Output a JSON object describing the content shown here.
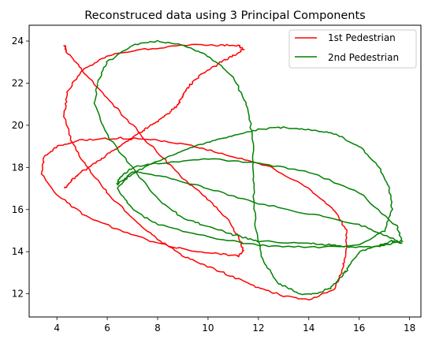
{
  "chart_data": {
    "type": "line",
    "title": "Reconstruced data using 3 Principal Components",
    "xlabel": "",
    "ylabel": "",
    "xlim": [
      2.9,
      18.45
    ],
    "ylim": [
      10.9,
      24.75
    ],
    "xticks": [
      4,
      6,
      8,
      10,
      12,
      14,
      16,
      18
    ],
    "yticks": [
      12,
      14,
      16,
      18,
      20,
      22,
      24
    ],
    "xtick_labels": [
      "4",
      "6",
      "8",
      "10",
      "12",
      "14",
      "16",
      "18"
    ],
    "ytick_labels": [
      "12",
      "14",
      "16",
      "18",
      "20",
      "22",
      "24"
    ],
    "grid": false,
    "legend_position": "top-right",
    "series": [
      {
        "name": "1st Pedestrian",
        "color": "#ff0000",
        "x": [
          4.3,
          4.4,
          5.0,
          6.0,
          7.0,
          8.0,
          9.0,
          10.0,
          10.8,
          11.3,
          11.4,
          11.2,
          10.5,
          9.5,
          8.0,
          6.5,
          5.0,
          4.0,
          3.4,
          3.5,
          4.0,
          5.0,
          6.5,
          8.0,
          9.5,
          11.0,
          12.5,
          14.0,
          15.0,
          15.5,
          15.5,
          15.3,
          15.0,
          14.0,
          13.0,
          12.0,
          11.0,
          10.0,
          9.0,
          8.0,
          7.0,
          6.0,
          5.2,
          4.6,
          4.3,
          4.4,
          5.0,
          6.0,
          7.5,
          9.0,
          10.3,
          11.2,
          11.4,
          11.0,
          10.5,
          10.0,
          9.5,
          9.2,
          9.0,
          8.8,
          8.5,
          8.0,
          7.5,
          7.0,
          6.5,
          6.0,
          5.5,
          5.0,
          4.6,
          4.3
        ],
        "y": [
          23.8,
          23.5,
          22.6,
          21.3,
          20.0,
          18.7,
          17.5,
          16.5,
          15.5,
          14.5,
          14.0,
          13.8,
          13.9,
          14.0,
          14.4,
          15.0,
          15.8,
          16.7,
          17.7,
          18.5,
          19.0,
          19.3,
          19.4,
          19.3,
          19.0,
          18.5,
          18.0,
          17.0,
          16.0,
          15.0,
          14.0,
          13.0,
          12.2,
          11.7,
          11.9,
          12.3,
          12.8,
          13.3,
          13.8,
          14.6,
          15.6,
          16.8,
          18.0,
          19.2,
          20.4,
          21.6,
          22.6,
          23.3,
          23.6,
          23.8,
          23.8,
          23.8,
          23.6,
          23.3,
          23.0,
          22.6,
          22.2,
          21.8,
          21.4,
          21.0,
          20.6,
          20.2,
          19.8,
          19.4,
          19.0,
          18.6,
          18.2,
          17.8,
          17.4,
          17.0
        ]
      },
      {
        "name": "2nd Pedestrian",
        "color": "#008000",
        "x": [
          5.6,
          6.0,
          7.0,
          8.0,
          9.0,
          10.0,
          11.0,
          11.6,
          11.8,
          11.8,
          11.9,
          12.2,
          12.8,
          13.6,
          14.3,
          14.9,
          15.3,
          15.6,
          16.0,
          16.8,
          17.3,
          17.7,
          17.2,
          16.0,
          14.0,
          12.0,
          10.0,
          8.5,
          7.0,
          6.4,
          7.0,
          8.0,
          10.0,
          12.0,
          14.0,
          16.0,
          17.0,
          17.3,
          17.2,
          16.8,
          16.0,
          15.0,
          14.0,
          13.0,
          12.0,
          11.0,
          10.0,
          9.0,
          8.0,
          7.0,
          6.4,
          6.5,
          7.0,
          8.0,
          10.0,
          12.0,
          14.0,
          16.0,
          17.5,
          17.7,
          17.0,
          16.0,
          15.0,
          14.0,
          12.0,
          11.0,
          10.0,
          9.0,
          8.0,
          7.0,
          6.0,
          5.5,
          5.6
        ],
        "y": [
          22.0,
          23.0,
          23.8,
          24.0,
          23.8,
          23.3,
          22.3,
          20.8,
          19.0,
          17.0,
          15.0,
          13.5,
          12.5,
          12.0,
          12.0,
          12.3,
          12.8,
          13.3,
          14.0,
          14.3,
          14.5,
          14.4,
          14.7,
          15.3,
          15.8,
          16.3,
          17.0,
          17.5,
          17.8,
          17.0,
          16.0,
          15.3,
          14.7,
          14.3,
          14.2,
          14.3,
          15.0,
          16.0,
          17.0,
          18.0,
          19.0,
          19.6,
          19.8,
          19.9,
          19.8,
          19.5,
          19.2,
          18.8,
          18.3,
          17.7,
          17.2,
          17.5,
          18.0,
          18.2,
          18.4,
          18.2,
          17.8,
          16.8,
          15.2,
          14.5,
          14.3,
          14.2,
          14.3,
          14.4,
          14.5,
          14.8,
          15.2,
          15.6,
          16.5,
          18.0,
          19.5,
          21.0,
          22.0
        ]
      }
    ]
  }
}
